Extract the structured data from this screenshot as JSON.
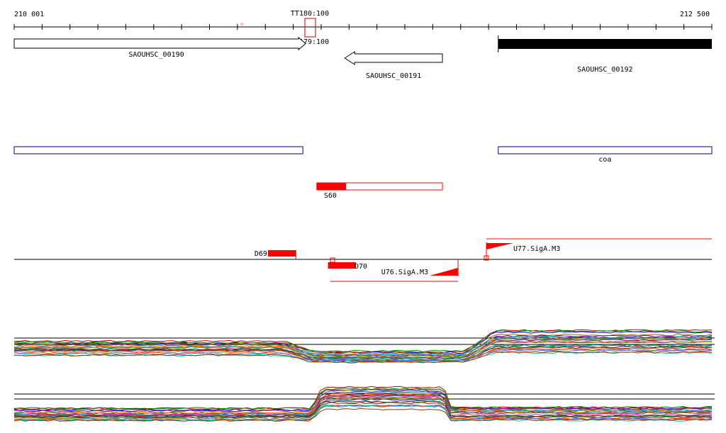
{
  "ruler": {
    "start_label": "210 001",
    "end_label": "212 500",
    "start_coord": 210001,
    "end_coord": 212500,
    "terminator_top_label": "TT180:100",
    "terminator_bottom_label": "TT179:100"
  },
  "genes": [
    {
      "label": "SAOUHSC_00190",
      "start": 210001,
      "end": 211045,
      "strand": "+",
      "filled": false
    },
    {
      "label": "SAOUHSC_00191",
      "start": 211185,
      "end": 211535,
      "strand": "-",
      "filled": false
    },
    {
      "label": "SAOUHSC_00192",
      "start": 211735,
      "end": 212500,
      "strand": "+",
      "filled": true
    }
  ],
  "annotations": [
    {
      "label": "",
      "start": 210001,
      "end": 211035,
      "color": "#00008b"
    },
    {
      "label": "coa",
      "start": 211735,
      "end": 212500,
      "color": "#00008b"
    }
  ],
  "segment": {
    "label": "S60",
    "start": 211085,
    "end": 211535,
    "fill_start": 211085,
    "fill_end": 211190,
    "color": "#ff0000"
  },
  "features": {
    "d69": {
      "label": "D69",
      "start": 210910,
      "end": 211010
    },
    "d70": {
      "label": "D70",
      "start": 211125,
      "end": 211225
    },
    "u76": {
      "label": "U76.SigA.M3"
    },
    "u77": {
      "label": "U77.SigA.M3"
    }
  },
  "colors": {
    "accent_red": "#ff0000",
    "annotation_blue": "#00008b",
    "text": "#000000"
  },
  "expression_tracks": [
    {
      "label": "",
      "low_start": 211045,
      "low_end": 211665
    },
    {
      "label": "",
      "high_start": 211105,
      "high_end": 211540
    }
  ]
}
